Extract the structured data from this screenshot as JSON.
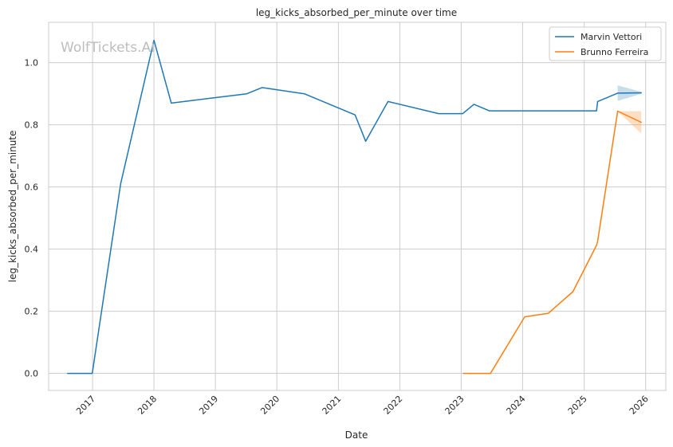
{
  "chart_data": {
    "type": "line",
    "title": "leg_kicks_absorbed_per_minute over time",
    "xlabel": "Date",
    "ylabel": "leg_kicks_absorbed_per_minute",
    "watermark": "WolfTickets.AI",
    "xlim": [
      "2016-04-15",
      "2026-05-01"
    ],
    "ylim": [
      -0.055,
      1.13
    ],
    "x_ticks": [
      "2017",
      "2018",
      "2019",
      "2020",
      "2021",
      "2022",
      "2023",
      "2024",
      "2025",
      "2026"
    ],
    "y_ticks": [
      "0.0",
      "0.2",
      "0.4",
      "0.6",
      "0.8",
      "1.0"
    ],
    "grid": true,
    "legend_position": "top-right",
    "series": [
      {
        "name": "Marvin Vettori",
        "color": "#1f77b4",
        "points": [
          [
            "2016-08-06",
            0.0
          ],
          [
            "2016-12-30",
            0.0
          ],
          [
            "2017-06-17",
            0.61
          ],
          [
            "2018-01-01",
            1.072
          ],
          [
            "2018-04-14",
            0.87
          ],
          [
            "2019-07-06",
            0.9
          ],
          [
            "2019-10-05",
            0.92
          ],
          [
            "2020-06-13",
            0.9
          ],
          [
            "2021-04-10",
            0.832
          ],
          [
            "2021-06-12",
            0.747
          ],
          [
            "2021-10-23",
            0.875
          ],
          [
            "2022-08-20",
            0.836
          ],
          [
            "2023-01-10",
            0.836
          ],
          [
            "2023-03-18",
            0.866
          ],
          [
            "2023-06-17",
            0.845
          ],
          [
            "2025-03-15",
            0.845
          ],
          [
            "2025-03-22",
            0.875
          ],
          [
            "2025-07-19",
            0.902
          ],
          [
            "2025-12-06",
            0.903
          ]
        ],
        "band": [
          [
            "2025-07-19",
            0.877,
            0.927
          ],
          [
            "2025-12-06",
            0.9,
            0.906
          ]
        ]
      },
      {
        "name": "Brunno Ferreira",
        "color": "#ff7f0e",
        "points": [
          [
            "2023-01-14",
            0.0
          ],
          [
            "2023-06-24",
            0.0
          ],
          [
            "2024-01-13",
            0.182
          ],
          [
            "2024-06-01",
            0.193
          ],
          [
            "2024-10-26",
            0.263
          ],
          [
            "2025-03-15",
            0.412
          ],
          [
            "2025-03-22",
            0.425
          ],
          [
            "2025-07-19",
            0.844
          ],
          [
            "2025-12-06",
            0.808
          ]
        ],
        "band": [
          [
            "2025-07-19",
            0.844,
            0.844
          ],
          [
            "2025-12-06",
            0.772,
            0.844
          ]
        ]
      }
    ]
  }
}
